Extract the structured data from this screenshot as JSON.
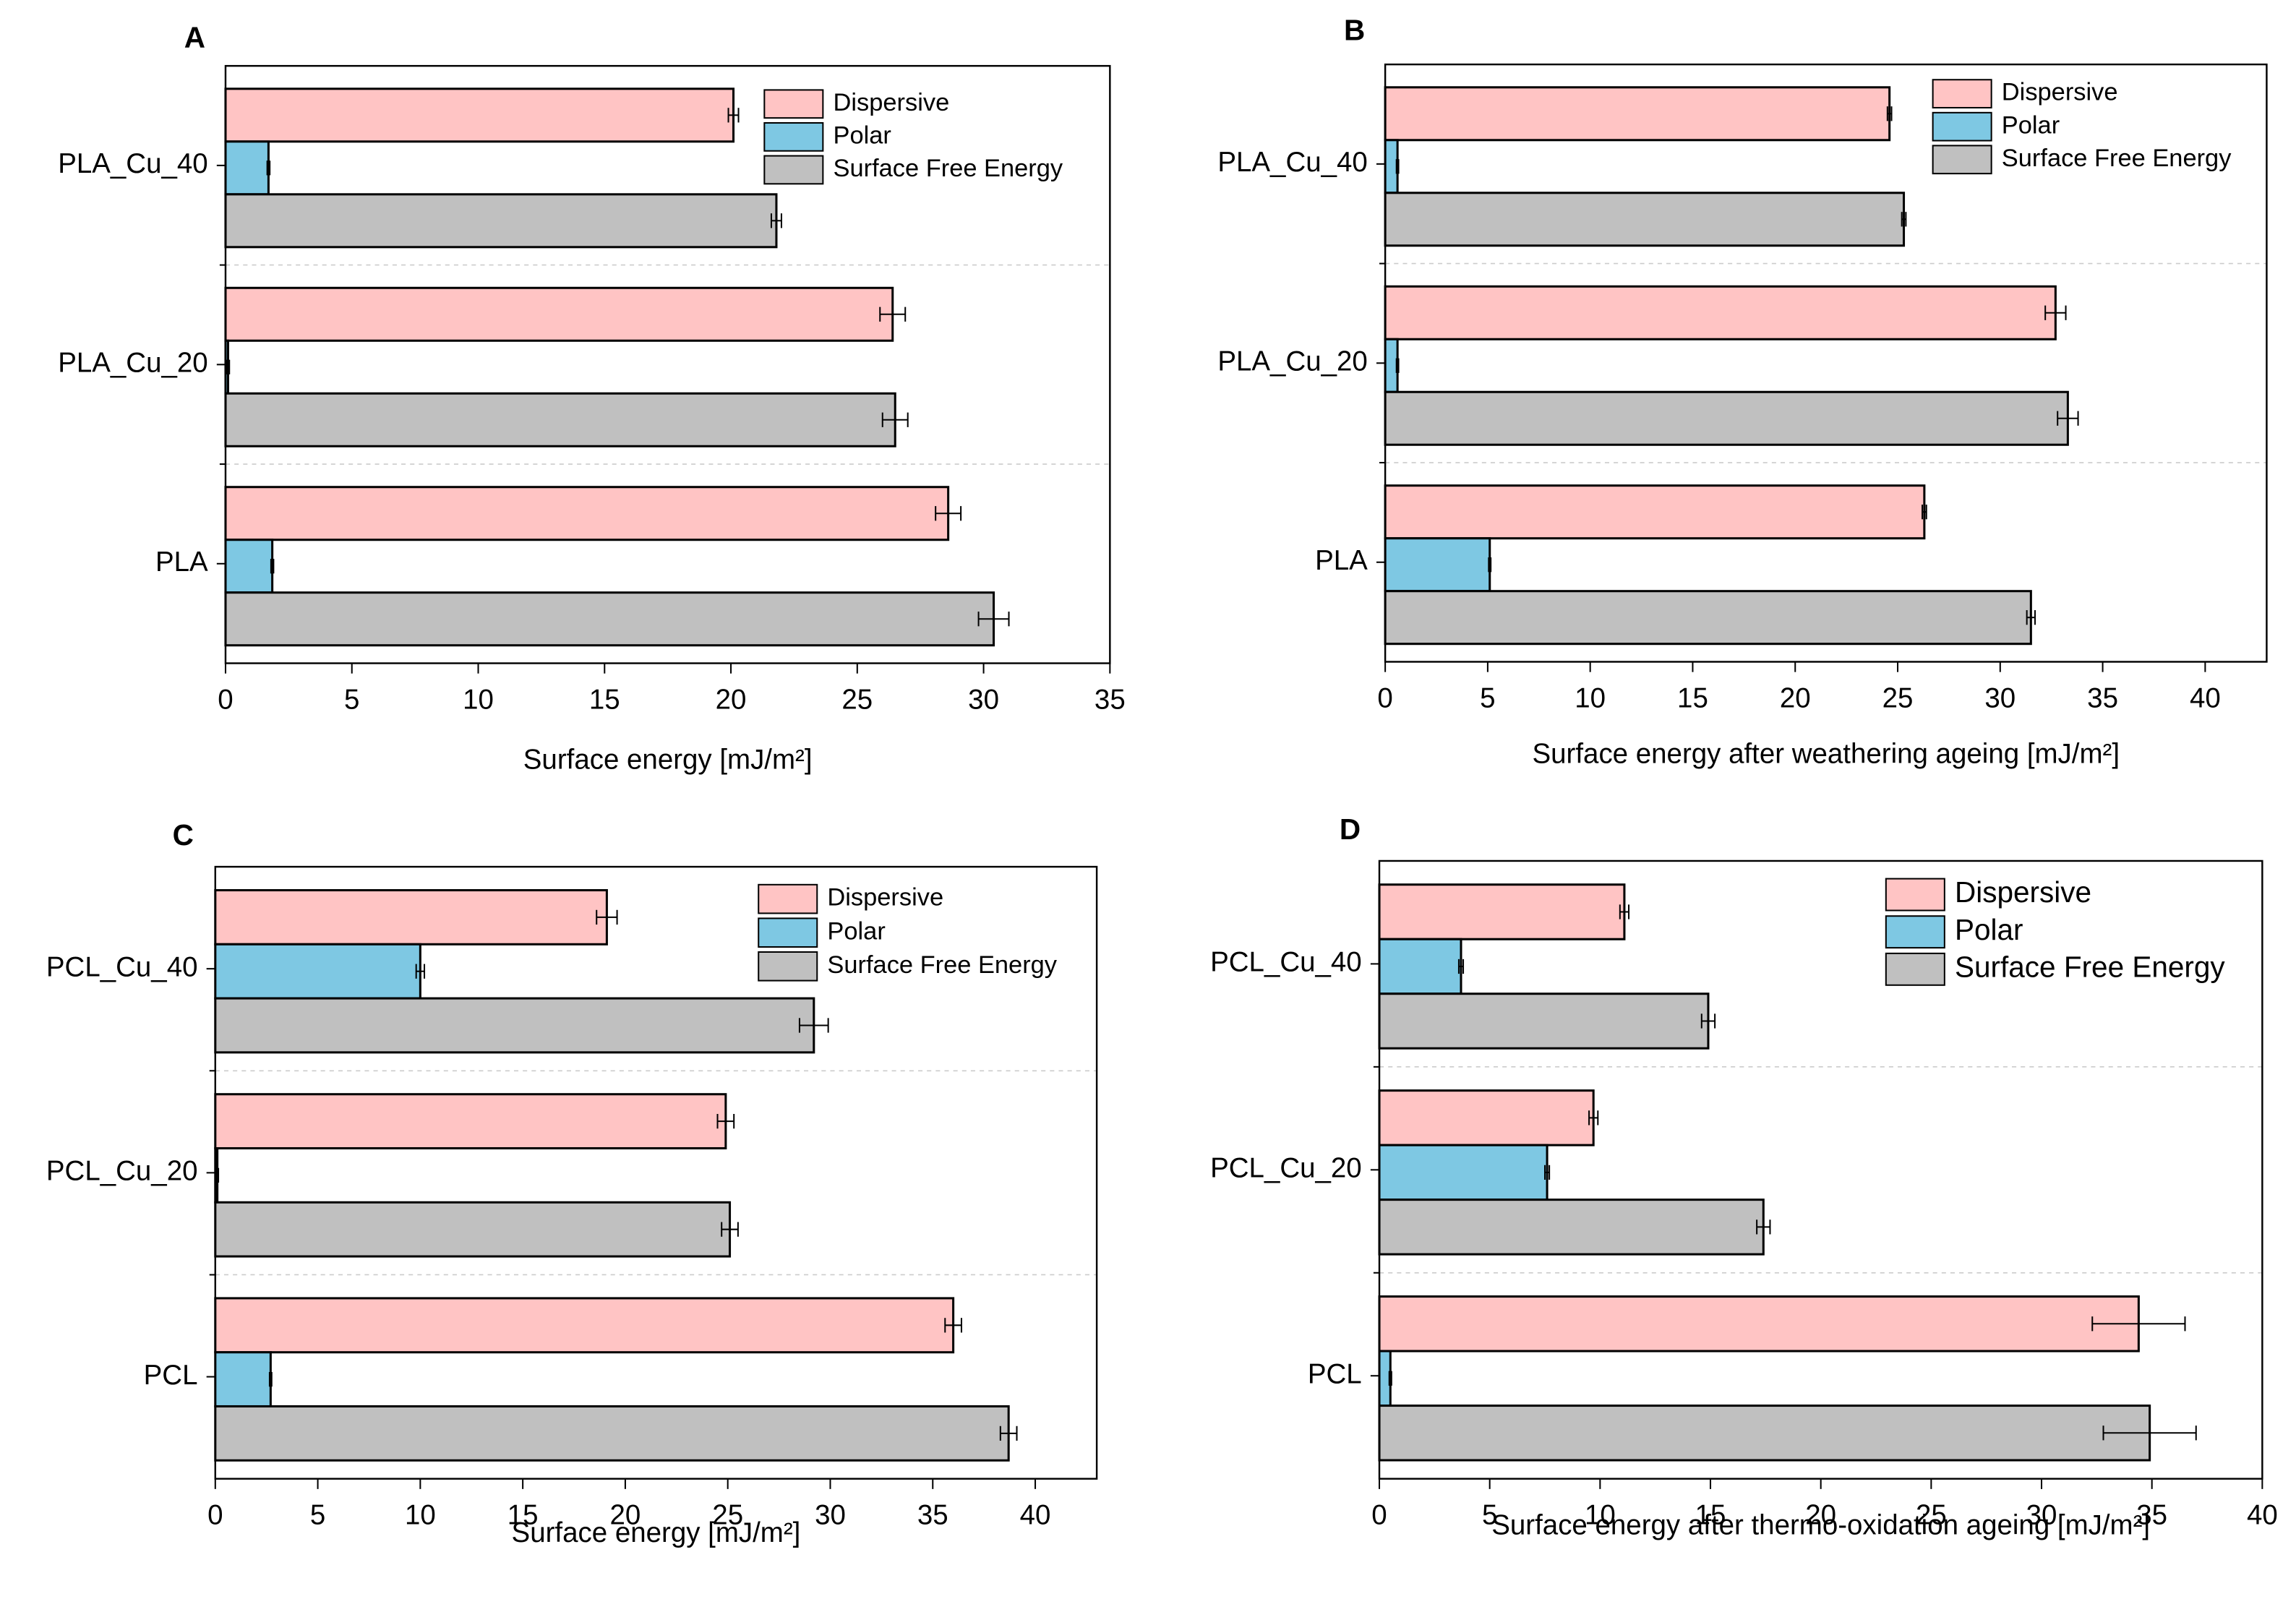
{
  "chart_data": [
    {
      "type": "barh",
      "panel": "A",
      "xlabel": "Surface energy [mJ/m²]",
      "categories": [
        "PLA",
        "PLA_Cu_20",
        "PLA_Cu_40"
      ],
      "series": [
        {
          "name": "Dispersive",
          "color": "#ffc4c4",
          "values": [
            28.6,
            26.4,
            20.1
          ],
          "errors": [
            0.5,
            0.5,
            0.2
          ]
        },
        {
          "name": "Polar",
          "color": "#7ec8e3",
          "values": [
            1.85,
            0.1,
            1.7
          ],
          "errors": [
            0.05,
            0.05,
            0.05
          ]
        },
        {
          "name": "Surface Free Energy",
          "color": "#c0c0c0",
          "values": [
            30.4,
            26.5,
            21.8
          ],
          "errors": [
            0.6,
            0.5,
            0.2
          ]
        }
      ],
      "xlim": [
        0,
        35
      ],
      "xticks": [
        0,
        5,
        10,
        15,
        20,
        25,
        30,
        35
      ]
    },
    {
      "type": "barh",
      "panel": "B",
      "xlabel": "Surface energy after weathering ageing  [mJ/m²]",
      "categories": [
        "PLA",
        "PLA_Cu_20",
        "PLA_Cu_40"
      ],
      "series": [
        {
          "name": "Dispersive",
          "color": "#ffc4c4",
          "values": [
            26.3,
            32.7,
            24.6
          ],
          "errors": [
            0.1,
            0.5,
            0.1
          ]
        },
        {
          "name": "Polar",
          "color": "#7ec8e3",
          "values": [
            5.1,
            0.6,
            0.6
          ],
          "errors": [
            0.05,
            0.05,
            0.05
          ]
        },
        {
          "name": "Surface Free Energy",
          "color": "#c0c0c0",
          "values": [
            31.5,
            33.3,
            25.3
          ],
          "errors": [
            0.2,
            0.5,
            0.1
          ]
        }
      ],
      "xlim": [
        0,
        43
      ],
      "xticks": [
        0,
        5,
        10,
        15,
        20,
        25,
        30,
        35,
        40
      ]
    },
    {
      "type": "barh",
      "panel": "C",
      "xlabel": "Surface energy [mJ/m²]",
      "categories": [
        "PCL",
        "PCL_Cu_20",
        "PCL_Cu_40"
      ],
      "series": [
        {
          "name": "Dispersive",
          "color": "#ffc4c4",
          "values": [
            36,
            24.9,
            19.1
          ],
          "errors": [
            0.4,
            0.4,
            0.5
          ]
        },
        {
          "name": "Polar",
          "color": "#7ec8e3",
          "values": [
            2.7,
            0.1,
            10.0
          ],
          "errors": [
            0.05,
            0.05,
            0.2
          ]
        },
        {
          "name": "Surface Free Energy",
          "color": "#c0c0c0",
          "values": [
            38.7,
            25.1,
            29.2
          ],
          "errors": [
            0.4,
            0.4,
            0.7
          ]
        }
      ],
      "xlim": [
        0,
        43
      ],
      "xticks": [
        0,
        5,
        10,
        15,
        20,
        25,
        30,
        35,
        40
      ]
    },
    {
      "type": "barh",
      "panel": "D",
      "xlabel": "Surface energy after thermo-oxidation ageing  [mJ/m²]",
      "categories": [
        "PCL",
        "PCL_Cu_20",
        "PCL_Cu_40"
      ],
      "series": [
        {
          "name": "Dispersive",
          "color": "#ffc4c4",
          "values": [
            34.4,
            9.7,
            11.1
          ],
          "errors": [
            2.1,
            0.2,
            0.2
          ]
        },
        {
          "name": "Polar",
          "color": "#7ec8e3",
          "values": [
            0.5,
            7.6,
            3.7
          ],
          "errors": [
            0.05,
            0.1,
            0.1
          ]
        },
        {
          "name": "Surface Free Energy",
          "color": "#c0c0c0",
          "values": [
            34.9,
            17.4,
            14.9
          ],
          "errors": [
            2.1,
            0.3,
            0.3
          ]
        }
      ],
      "xlim": [
        0,
        40
      ],
      "xticks": [
        0,
        5,
        10,
        15,
        20,
        25,
        30,
        35,
        40
      ]
    }
  ]
}
